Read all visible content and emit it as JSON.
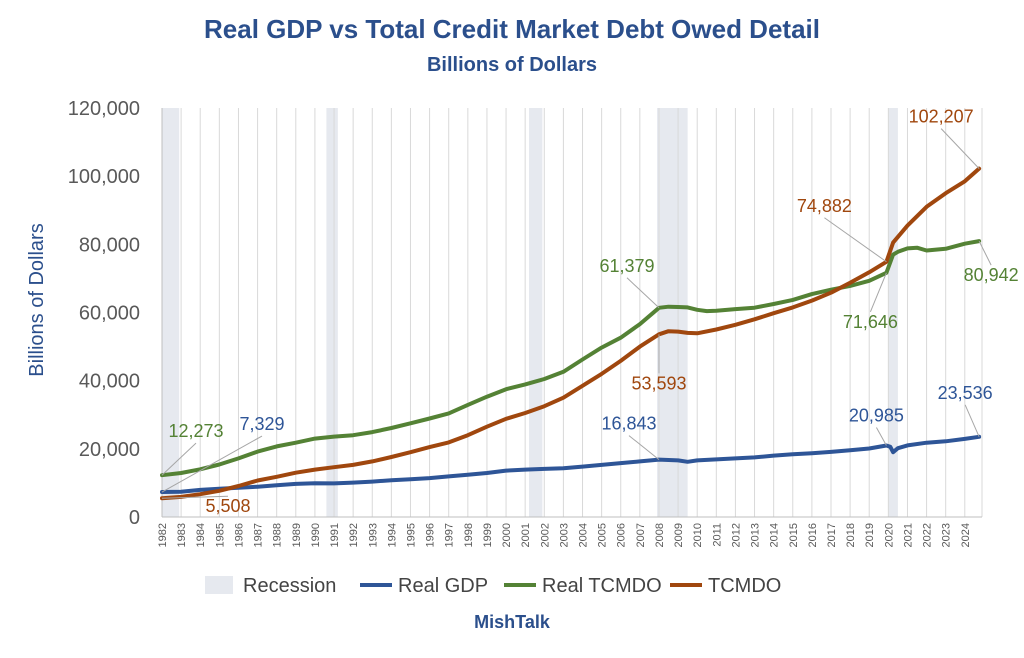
{
  "chart_data": {
    "type": "line",
    "title": "Real GDP vs Total Credit Market Debt Owed Detail",
    "subtitle": "Billions of Dollars",
    "ylabel": "Billions of Dollars",
    "xlabel": "",
    "footer": "MishTalk",
    "ylim": [
      0,
      120000
    ],
    "xlim": [
      1982,
      2024.9
    ],
    "y_ticks": [
      "0",
      "20,000",
      "40,000",
      "60,000",
      "80,000",
      "100,000",
      "120,000"
    ],
    "x_ticks": [
      "1982",
      "1983",
      "1984",
      "1985",
      "1986",
      "1987",
      "1988",
      "1989",
      "1990",
      "1991",
      "1992",
      "1993",
      "1994",
      "1995",
      "1996",
      "1997",
      "1998",
      "1999",
      "2000",
      "2001",
      "2002",
      "2003",
      "2004",
      "2005",
      "2006",
      "2007",
      "2008",
      "2009",
      "2010",
      "2011",
      "2012",
      "2013",
      "2014",
      "2015",
      "2016",
      "2017",
      "2018",
      "2019",
      "2020",
      "2021",
      "2022",
      "2023",
      "2024"
    ],
    "grid": "vertical",
    "legend_position": "bottom",
    "recessions": [
      [
        1982.0,
        1982.9
      ],
      [
        1990.6,
        1991.2
      ],
      [
        2001.2,
        2001.9
      ],
      [
        2007.9,
        2009.5
      ],
      [
        2020.0,
        2020.5
      ]
    ],
    "legend": [
      {
        "name": "Recession",
        "color": "#e6e9ef",
        "kind": "box"
      },
      {
        "name": "Real GDP",
        "color": "#2e5597",
        "kind": "line"
      },
      {
        "name": "Real TCMDO",
        "color": "#548235",
        "kind": "line"
      },
      {
        "name": "TCMDO",
        "color": "#a0470e",
        "kind": "line"
      }
    ],
    "series": [
      {
        "name": "Real GDP",
        "color": "#2e5597",
        "x": [
          1982,
          1983,
          1984,
          1985,
          1986,
          1987,
          1988,
          1989,
          1990,
          1991,
          1992,
          1993,
          1994,
          1995,
          1996,
          1997,
          1998,
          1999,
          2000,
          2001,
          2002,
          2003,
          2004,
          2005,
          2006,
          2007,
          2008,
          2009,
          2009.5,
          2010,
          2011,
          2012,
          2013,
          2014,
          2015,
          2016,
          2017,
          2018,
          2019,
          2019.9,
          2020.1,
          2020.25,
          2020.5,
          2021,
          2022,
          2023,
          2024,
          2024.75
        ],
        "values": [
          7329,
          7400,
          7950,
          8300,
          8600,
          8900,
          9300,
          9700,
          9900,
          9850,
          10100,
          10400,
          10800,
          11100,
          11400,
          11900,
          12400,
          12900,
          13600,
          13900,
          14100,
          14300,
          14800,
          15300,
          15800,
          16300,
          16843,
          16600,
          16200,
          16600,
          16900,
          17200,
          17500,
          18000,
          18400,
          18700,
          19100,
          19600,
          20100,
          20985,
          20600,
          19000,
          20200,
          21000,
          21800,
          22200,
          22900,
          23536
        ]
      },
      {
        "name": "Real TCMDO",
        "color": "#548235",
        "x": [
          1982,
          1983,
          1984,
          1985,
          1986,
          1987,
          1988,
          1989,
          1990,
          1991,
          1992,
          1993,
          1994,
          1995,
          1996,
          1997,
          1998,
          1999,
          2000,
          2001,
          2002,
          2003,
          2004,
          2005,
          2006,
          2007,
          2008,
          2008.5,
          2009,
          2009.5,
          2010,
          2010.5,
          2011,
          2012,
          2013,
          2014,
          2015,
          2016,
          2017,
          2018,
          2019,
          2019.9,
          2020.25,
          2020.5,
          2021,
          2021.5,
          2022,
          2023,
          2024,
          2024.75
        ],
        "values": [
          12273,
          12900,
          14000,
          15400,
          17200,
          19200,
          20700,
          21800,
          23000,
          23600,
          24000,
          24900,
          26100,
          27500,
          28900,
          30400,
          32900,
          35300,
          37500,
          38900,
          40500,
          42600,
          46200,
          49700,
          52600,
          56600,
          61379,
          61700,
          61600,
          61500,
          60800,
          60400,
          60500,
          61000,
          61400,
          62500,
          63700,
          65400,
          66700,
          67800,
          69300,
          71646,
          77000,
          77800,
          78800,
          79000,
          78200,
          78700,
          80200,
          80942
        ]
      },
      {
        "name": "TCMDO",
        "color": "#a0470e",
        "x": [
          1982,
          1983,
          1984,
          1985,
          1986,
          1987,
          1988,
          1989,
          1990,
          1991,
          1992,
          1993,
          1994,
          1995,
          1996,
          1997,
          1998,
          1999,
          2000,
          2001,
          2002,
          2003,
          2004,
          2005,
          2006,
          2007,
          2008,
          2008.5,
          2009,
          2009.5,
          2010,
          2011,
          2012,
          2013,
          2014,
          2015,
          2016,
          2017,
          2018,
          2019,
          2019.9,
          2020.25,
          2021,
          2022,
          2023,
          2024,
          2024.75
        ],
        "values": [
          5508,
          5900,
          6700,
          7700,
          9100,
          10700,
          11800,
          13000,
          13900,
          14600,
          15300,
          16300,
          17600,
          19000,
          20500,
          21900,
          24000,
          26500,
          28800,
          30500,
          32500,
          35000,
          38500,
          42000,
          45800,
          50000,
          53593,
          54500,
          54400,
          54000,
          53900,
          55000,
          56400,
          58000,
          59800,
          61500,
          63500,
          65800,
          68700,
          71800,
          74882,
          80500,
          85500,
          91000,
          95000,
          98500,
          102207
        ]
      }
    ],
    "annotations": [
      {
        "text": "12,273",
        "series": "Real TCMDO",
        "x": 1982,
        "y": 12273
      },
      {
        "text": "7,329",
        "series": "Real GDP",
        "x": 1982,
        "y": 7329
      },
      {
        "text": "5,508",
        "series": "TCMDO",
        "x": 1982,
        "y": 5508
      },
      {
        "text": "61,379",
        "series": "Real TCMDO",
        "x": 2008,
        "y": 61379
      },
      {
        "text": "53,593",
        "series": "TCMDO",
        "x": 2008,
        "y": 53593
      },
      {
        "text": "16,843",
        "series": "Real GDP",
        "x": 2008,
        "y": 16843
      },
      {
        "text": "74,882",
        "series": "TCMDO",
        "x": 2019.9,
        "y": 74882
      },
      {
        "text": "71,646",
        "series": "Real TCMDO",
        "x": 2019.9,
        "y": 71646
      },
      {
        "text": "20,985",
        "series": "Real GDP",
        "x": 2019.9,
        "y": 20985
      },
      {
        "text": "102,207",
        "series": "TCMDO",
        "x": 2024.75,
        "y": 102207
      },
      {
        "text": "80,942",
        "series": "Real TCMDO",
        "x": 2024.75,
        "y": 80942
      },
      {
        "text": "23,536",
        "series": "Real GDP",
        "x": 2024.75,
        "y": 23536
      }
    ]
  }
}
